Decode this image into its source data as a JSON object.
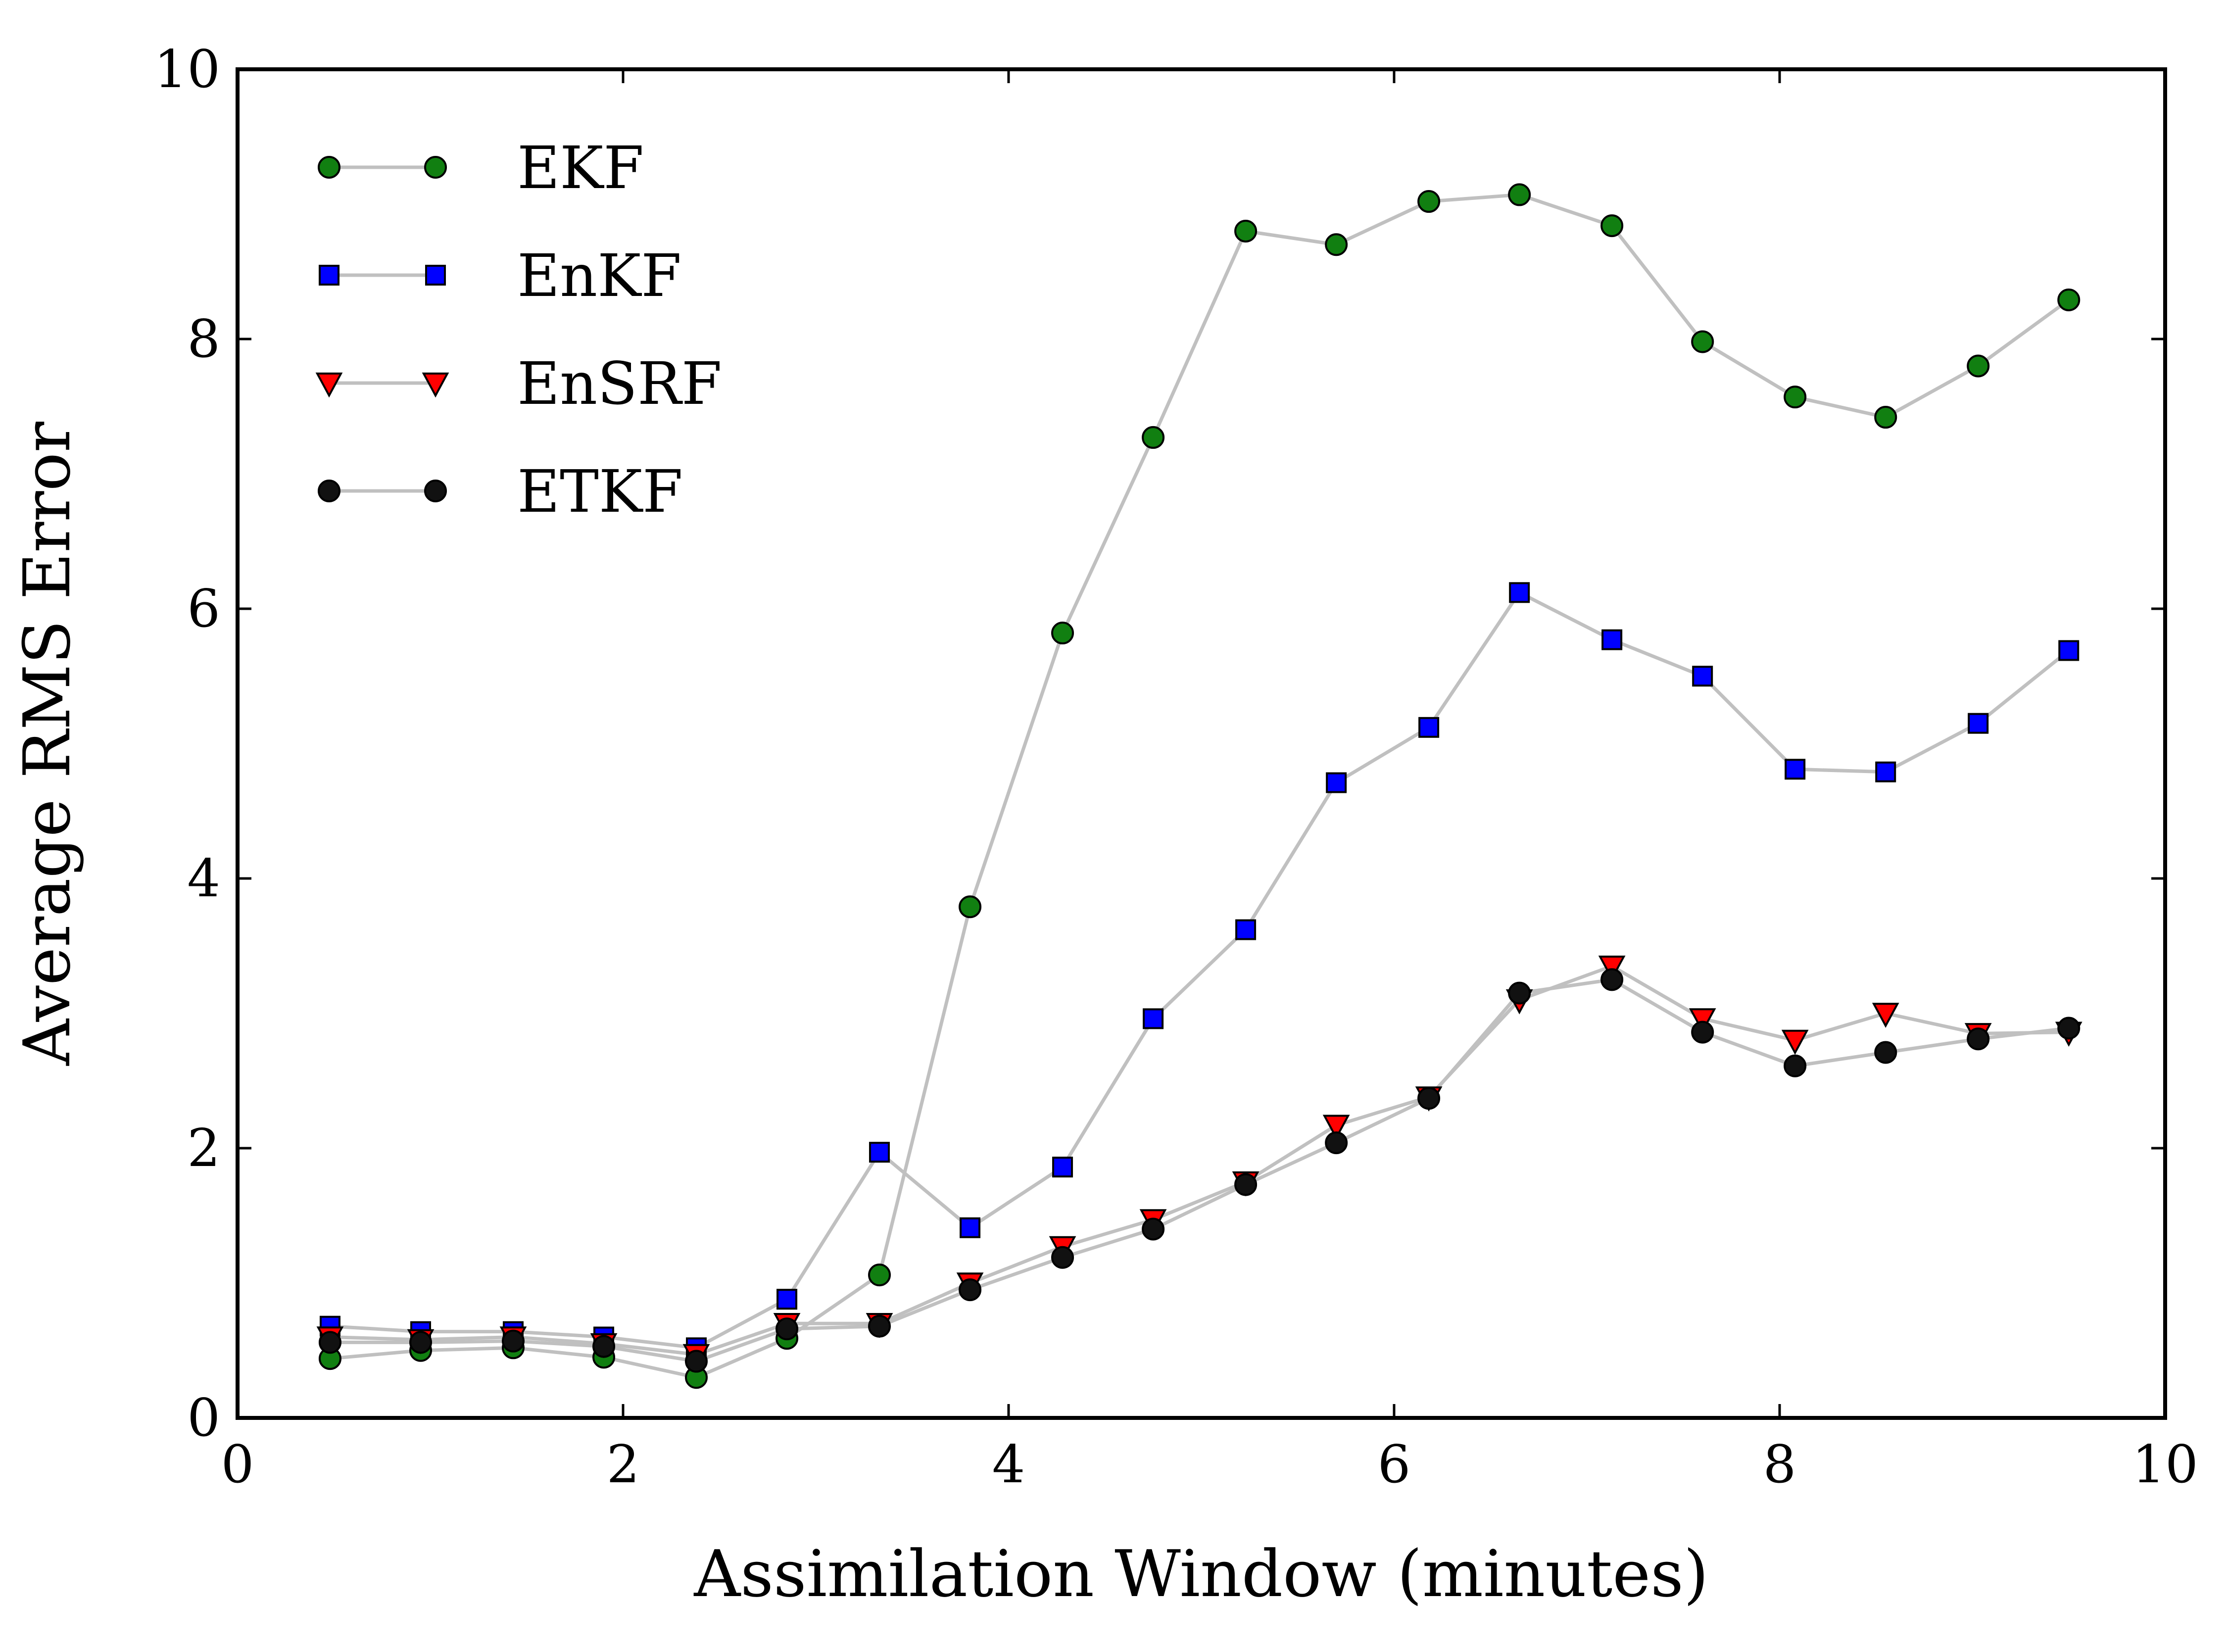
{
  "chart_data": {
    "type": "line",
    "title": "",
    "xlabel": "Assimilation Window (minutes)",
    "ylabel": "Average RMS Error",
    "xlim": [
      0,
      10
    ],
    "ylim": [
      0,
      10
    ],
    "xticks": [
      "0",
      "2",
      "4",
      "6",
      "8",
      "10"
    ],
    "yticks": [
      "0",
      "2",
      "4",
      "6",
      "8",
      "10"
    ],
    "grid": false,
    "legend_position": "top-left",
    "line_color": "#c0c0c0",
    "x": [
      0.48,
      0.95,
      1.43,
      1.9,
      2.38,
      2.85,
      3.33,
      3.8,
      4.28,
      4.75,
      5.23,
      5.7,
      6.18,
      6.65,
      7.13,
      7.6,
      8.08,
      8.55,
      9.03,
      9.5
    ],
    "series": [
      {
        "name": "EKF",
        "marker": "circle",
        "color": "#117f11",
        "values": [
          0.44,
          0.5,
          0.52,
          0.45,
          0.3,
          0.59,
          1.06,
          3.79,
          5.82,
          7.27,
          8.8,
          8.7,
          9.02,
          9.07,
          8.84,
          7.98,
          7.57,
          7.42,
          7.8,
          8.29
        ]
      },
      {
        "name": "EnKF",
        "marker": "square",
        "color": "#0000ff",
        "values": [
          0.68,
          0.64,
          0.64,
          0.6,
          0.52,
          0.88,
          1.97,
          1.41,
          1.86,
          2.96,
          3.62,
          4.71,
          5.12,
          6.12,
          5.77,
          5.5,
          4.81,
          4.79,
          5.15,
          5.69
        ]
      },
      {
        "name": "EnSRF",
        "marker": "triangle-down",
        "color": "#ff0000",
        "values": [
          0.6,
          0.58,
          0.6,
          0.55,
          0.47,
          0.7,
          0.7,
          1.0,
          1.27,
          1.47,
          1.75,
          2.17,
          2.38,
          3.1,
          3.35,
          2.96,
          2.8,
          3.0,
          2.85,
          2.86
        ]
      },
      {
        "name": "ETKF",
        "marker": "circle",
        "color": "#111111",
        "values": [
          0.56,
          0.56,
          0.57,
          0.53,
          0.42,
          0.66,
          0.68,
          0.95,
          1.19,
          1.4,
          1.73,
          2.04,
          2.37,
          3.15,
          3.25,
          2.86,
          2.61,
          2.71,
          2.81,
          2.89
        ]
      }
    ]
  }
}
